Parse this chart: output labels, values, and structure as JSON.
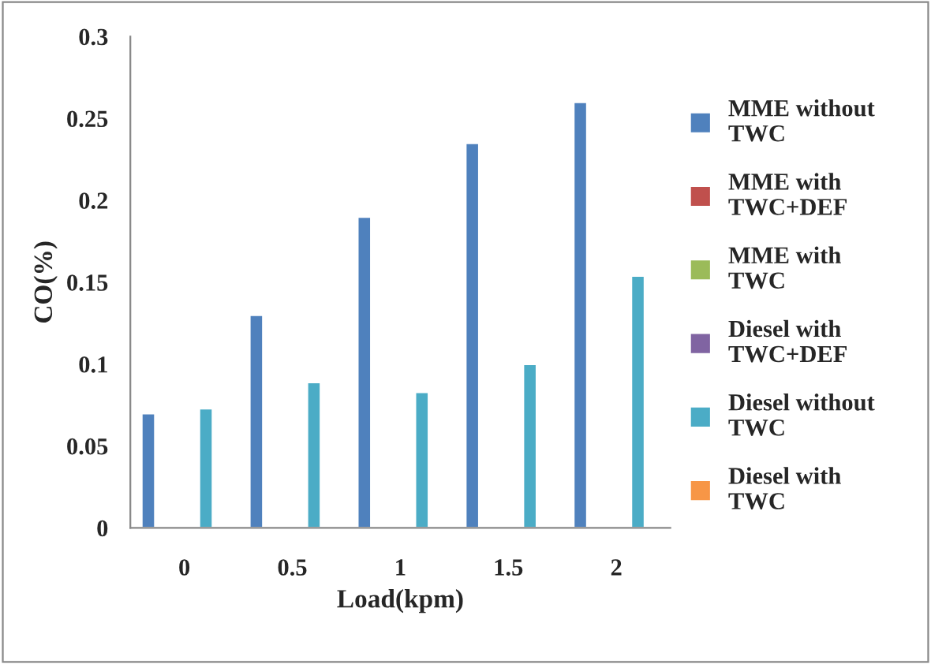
{
  "chart_data": {
    "type": "bar",
    "xlabel": "Load(kpm)",
    "ylabel": "CO(%)",
    "categories": [
      "0",
      "0.5",
      "1",
      "1.5",
      "2"
    ],
    "series": [
      {
        "name": "MME without TWC",
        "color": "#4f81bd",
        "values": [
          0.07,
          0.13,
          0.19,
          0.235,
          0.26
        ]
      },
      {
        "name": "MME with TWC+DEF",
        "color": "#c0504d",
        "values": [
          null,
          null,
          null,
          null,
          null
        ]
      },
      {
        "name": "MME with TWC",
        "color": "#9bbb59",
        "values": [
          null,
          null,
          null,
          null,
          null
        ]
      },
      {
        "name": "Diesel with TWC+DEF",
        "color": "#8064a2",
        "values": [
          null,
          null,
          null,
          null,
          null
        ]
      },
      {
        "name": "Diesel without TWC",
        "color": "#4bacc6",
        "values": [
          0.073,
          0.089,
          0.083,
          0.1,
          0.154
        ]
      },
      {
        "name": "Diesel with TWC",
        "color": "#f79646",
        "values": [
          null,
          null,
          null,
          null,
          null
        ]
      }
    ],
    "ylim": [
      0,
      0.3
    ],
    "yticks": [
      {
        "value": 0,
        "label": "0"
      },
      0.05,
      0.1,
      0.15,
      0.2,
      0.25,
      0.3
    ],
    "grid": false,
    "legend": "right"
  }
}
